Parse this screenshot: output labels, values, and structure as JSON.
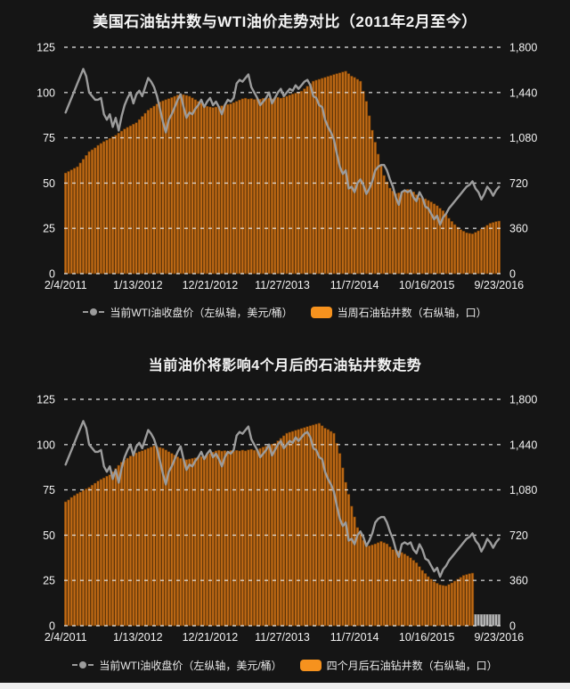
{
  "page": {
    "background": "#151515",
    "text_color": "#f2f2f2",
    "bottom_strip_color": "#eeeeee"
  },
  "charts": [
    {
      "title": "美国石油钻井数与WTI油价走势对比（2011年2月至今）",
      "legend": [
        {
          "marker": "line-dot",
          "label": "当前WTI油收盘价（左纵轴，美元/桶）",
          "color": "#9c9c9c"
        },
        {
          "marker": "bar-swatch",
          "label": "当周石油钻井数（右纵轴，口）",
          "color": "#f6921e"
        }
      ],
      "chart_data": {
        "type": "bar+line",
        "grid": "dashed-horizontal",
        "legend_position": "bottom",
        "x_tick_labels": [
          "2/4/2011",
          "1/13/2012",
          "12/21/2012",
          "11/27/2013",
          "11/7/2014",
          "10/16/2015",
          "9/23/2016"
        ],
        "left_axis": {
          "min": 0,
          "max": 125,
          "ticks": [
            "125",
            "100",
            "75",
            "50",
            "25",
            "0"
          ]
        },
        "right_axis": {
          "min": 0,
          "max": 1800,
          "ticks": [
            "1,800",
            "1,440",
            "1,080",
            "720",
            "360",
            "0"
          ]
        },
        "series": [
          {
            "name": "当前WTI油收盘价",
            "type": "line",
            "axis": "left",
            "unit": "美元/桶",
            "color": "#9c9c9c",
            "values": [
              89,
              93,
              97,
              101,
              105,
              109,
              113,
              109,
              100,
              98,
              96,
              96,
              97,
              88,
              85,
              88,
              81,
              86,
              79,
              87,
              93,
              97,
              100,
              94,
              99,
              101,
              98,
              103,
              108,
              106,
              103,
              98,
              91,
              84,
              78,
              85,
              88,
              92,
              96,
              99,
              92,
              86,
              89,
              88,
              91,
              93,
              96,
              92,
              95,
              97,
              93,
              95,
              92,
              88,
              93,
              96,
              95,
              97,
              105,
              107,
              106,
              108,
              110,
              103,
              100,
              97,
              93,
              95,
              97,
              100,
              94,
              97,
              100,
              102,
              98,
              100,
              102,
              101,
              104,
              102,
              104,
              106,
              107,
              104,
              98,
              97,
              93,
              92,
              85,
              81,
              78,
              74,
              66,
              59,
              55,
              57,
              47,
              48,
              45,
              50,
              52,
              49,
              44,
              47,
              51,
              57,
              59,
              60,
              60,
              57,
              52,
              48,
              42,
              38,
              45,
              46,
              45,
              46,
              42,
              40,
              45,
              42,
              37,
              36,
              33,
              30,
              32,
              27,
              31,
              33,
              36,
              38,
              40,
              42,
              44,
              46,
              48,
              49,
              51,
              47,
              45,
              41,
              44,
              48,
              46,
              43,
              46,
              48
            ]
          },
          {
            "name": "当周石油钻井数",
            "type": "bar",
            "axis": "right",
            "unit": "口",
            "color": "#c06a15",
            "edge": "#6f3d08",
            "values": [
              800,
              812,
              825,
              838,
              850,
              880,
              910,
              940,
              970,
              985,
              1000,
              1020,
              1035,
              1050,
              1062,
              1075,
              1088,
              1100,
              1117,
              1133,
              1150,
              1163,
              1175,
              1188,
              1200,
              1225,
              1250,
              1275,
              1300,
              1316,
              1332,
              1349,
              1365,
              1374,
              1383,
              1391,
              1400,
              1410,
              1420,
              1430,
              1423,
              1417,
              1410,
              1397,
              1383,
              1370,
              1357,
              1343,
              1330,
              1325,
              1320,
              1325,
              1330,
              1335,
              1340,
              1345,
              1350,
              1360,
              1370,
              1380,
              1390,
              1395,
              1388,
              1392,
              1385,
              1393,
              1387,
              1394,
              1390,
              1396,
              1390,
              1398,
              1402,
              1395,
              1400,
              1410,
              1420,
              1428,
              1435,
              1443,
              1450,
              1470,
              1490,
              1510,
              1530,
              1538,
              1545,
              1553,
              1560,
              1568,
              1575,
              1583,
              1590,
              1596,
              1603,
              1609,
              1590,
              1570,
              1560,
              1545,
              1530,
              1450,
              1370,
              1255,
              1140,
              1045,
              950,
              865,
              780,
              730,
              680,
              657,
              635,
              642,
              650,
              660,
              670,
              660,
              650,
              627,
              605,
              600,
              595,
              582,
              570,
              555,
              540,
              520,
              500,
              470,
              440,
              415,
              390,
              370,
              350,
              337,
              325,
              320,
              316,
              328,
              340,
              355,
              370,
              385,
              400,
              407,
              414,
              418
            ]
          }
        ]
      }
    },
    {
      "title": "当前油价将影响4个月后的石油钻井数走势",
      "legend": [
        {
          "marker": "line-dot",
          "label": "当前WTI油收盘价（左纵轴，美元/桶）",
          "color": "#9c9c9c"
        },
        {
          "marker": "bar-swatch",
          "label": "四个月后石油钻井数（右纵轴，口）",
          "color": "#f6921e"
        }
      ],
      "chart_data": {
        "type": "bar+line",
        "grid": "dashed-horizontal",
        "legend_position": "bottom",
        "x_tick_labels": [
          "2/4/2011",
          "1/13/2012",
          "12/21/2012",
          "11/27/2013",
          "11/7/2014",
          "10/16/2015",
          "9/23/2016"
        ],
        "left_axis": {
          "min": 0,
          "max": 125,
          "ticks": [
            "125",
            "100",
            "75",
            "50",
            "25",
            "0"
          ]
        },
        "right_axis": {
          "min": 0,
          "max": 1800,
          "ticks": [
            "1,800",
            "1,440",
            "1,080",
            "720",
            "360",
            "0"
          ]
        },
        "placeholder": {
          "value": 90,
          "color": "#b9b9b9",
          "edge": "#6e6e6e"
        },
        "series": [
          {
            "name": "当前WTI油收盘价",
            "type": "line",
            "axis": "left",
            "unit": "美元/桶",
            "color": "#9c9c9c",
            "values": [
              89,
              93,
              97,
              101,
              105,
              109,
              113,
              109,
              100,
              98,
              96,
              96,
              97,
              88,
              85,
              88,
              81,
              86,
              79,
              87,
              93,
              97,
              100,
              94,
              99,
              101,
              98,
              103,
              108,
              106,
              103,
              98,
              91,
              84,
              78,
              85,
              88,
              92,
              96,
              99,
              92,
              86,
              89,
              88,
              91,
              93,
              96,
              92,
              95,
              97,
              93,
              95,
              92,
              88,
              93,
              96,
              95,
              97,
              105,
              107,
              106,
              108,
              110,
              103,
              100,
              97,
              93,
              95,
              97,
              100,
              94,
              97,
              100,
              102,
              98,
              100,
              102,
              101,
              104,
              102,
              104,
              106,
              107,
              104,
              98,
              97,
              93,
              92,
              85,
              81,
              78,
              74,
              66,
              59,
              55,
              57,
              47,
              48,
              45,
              50,
              52,
              49,
              44,
              47,
              51,
              57,
              59,
              60,
              60,
              57,
              52,
              48,
              42,
              38,
              45,
              46,
              45,
              46,
              42,
              40,
              45,
              42,
              37,
              36,
              33,
              30,
              32,
              27,
              31,
              33,
              36,
              38,
              40,
              42,
              44,
              46,
              48,
              49,
              51,
              47,
              45,
              41,
              44,
              48,
              46,
              43,
              46,
              48
            ]
          },
          {
            "name": "四个月后石油钻井数",
            "type": "bar",
            "axis": "right",
            "unit": "口",
            "color": "#c06a15",
            "edge": "#6f3d08",
            "values": [
              985,
              1000,
              1020,
              1035,
              1050,
              1062,
              1075,
              1088,
              1100,
              1117,
              1133,
              1150,
              1163,
              1175,
              1188,
              1200,
              1225,
              1250,
              1275,
              1300,
              1316,
              1332,
              1349,
              1365,
              1374,
              1383,
              1391,
              1400,
              1410,
              1420,
              1430,
              1423,
              1417,
              1410,
              1397,
              1383,
              1370,
              1357,
              1343,
              1330,
              1325,
              1320,
              1325,
              1330,
              1335,
              1340,
              1345,
              1350,
              1360,
              1370,
              1380,
              1390,
              1395,
              1388,
              1392,
              1385,
              1393,
              1387,
              1394,
              1390,
              1396,
              1390,
              1398,
              1402,
              1395,
              1400,
              1410,
              1420,
              1428,
              1435,
              1443,
              1450,
              1470,
              1490,
              1510,
              1530,
              1538,
              1545,
              1553,
              1560,
              1568,
              1575,
              1583,
              1590,
              1596,
              1603,
              1609,
              1590,
              1570,
              1560,
              1545,
              1530,
              1450,
              1370,
              1255,
              1140,
              1045,
              950,
              865,
              780,
              730,
              680,
              657,
              635,
              642,
              650,
              660,
              670,
              660,
              650,
              627,
              605,
              600,
              595,
              582,
              570,
              555,
              540,
              520,
              500,
              470,
              440,
              415,
              390,
              370,
              350,
              337,
              325,
              320,
              316,
              328,
              340,
              355,
              370,
              385,
              400,
              407,
              414,
              418,
              null,
              null,
              null,
              null,
              null,
              null,
              null,
              null,
              null
            ]
          }
        ]
      }
    }
  ]
}
